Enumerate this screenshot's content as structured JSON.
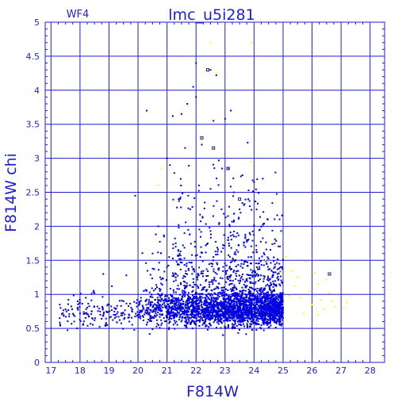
{
  "chart_data": {
    "type": "scatter",
    "title": "lmc_u5i281",
    "panel_label": "WF4",
    "xlabel": "F814W",
    "ylabel": "F814W  chi",
    "xlim": [
      16.8,
      28.5
    ],
    "ylim": [
      0,
      5
    ],
    "x_ticks": [
      17,
      18,
      19,
      20,
      21,
      22,
      23,
      24,
      25,
      26,
      27,
      28
    ],
    "y_ticks": [
      0,
      0.5,
      1,
      1.5,
      2,
      2.5,
      3,
      3.5,
      4,
      4.5,
      5
    ],
    "x_tick_labels": [
      "17",
      "18",
      "19",
      "20",
      "21",
      "22",
      "23",
      "24",
      "25",
      "26",
      "27",
      "28"
    ],
    "y_tick_labels": [
      "0",
      "0.5",
      "1",
      "1.5",
      "2",
      "2.5",
      "3",
      "3.5",
      "4",
      "4.5",
      "5"
    ],
    "grid": true,
    "colors": {
      "frame": "#1f1fcf",
      "blue_points": "#0000e0",
      "yellow_points": "#ffff00",
      "open_points": "#1a1a80"
    },
    "series": [
      {
        "color": "blue",
        "points": [
          [
            17.3,
            0.65
          ],
          [
            17.5,
            0.78
          ],
          [
            17.6,
            0.92
          ],
          [
            17.8,
            0.6
          ],
          [
            17.9,
            0.5
          ],
          [
            18.0,
            0.72
          ],
          [
            18.0,
            0.88
          ],
          [
            18.1,
            0.55
          ],
          [
            18.2,
            0.95
          ],
          [
            18.3,
            0.68
          ],
          [
            18.4,
            0.75
          ],
          [
            18.5,
            0.62
          ],
          [
            18.5,
            1.02
          ],
          [
            18.6,
            0.82
          ],
          [
            18.7,
            0.7
          ],
          [
            18.8,
            1.3
          ],
          [
            18.9,
            0.58
          ],
          [
            19.0,
            0.85
          ],
          [
            19.1,
            1.12
          ],
          [
            19.2,
            0.65
          ],
          [
            19.3,
            0.74
          ],
          [
            19.5,
            0.9
          ],
          [
            19.6,
            1.28
          ],
          [
            19.7,
            0.6
          ],
          [
            19.8,
            0.78
          ],
          [
            19.9,
            2.45
          ],
          [
            20.0,
            0.7
          ],
          [
            20.1,
            0.95
          ],
          [
            20.2,
            1.05
          ],
          [
            20.3,
            3.7
          ],
          [
            20.4,
            0.42
          ],
          [
            20.5,
            1.6
          ],
          [
            20.5,
            0.66
          ],
          [
            20.6,
            0.8
          ],
          [
            20.7,
            2.0
          ],
          [
            20.8,
            1.22
          ],
          [
            20.8,
            0.55
          ],
          [
            20.9,
            1.85
          ],
          [
            21.0,
            1.4
          ],
          [
            21.0,
            3.0
          ],
          [
            21.1,
            0.6
          ],
          [
            21.1,
            2.9
          ],
          [
            21.2,
            3.62
          ],
          [
            21.3,
            1.7
          ],
          [
            21.4,
            2.4
          ],
          [
            21.5,
            3.65
          ],
          [
            21.6,
            1.9
          ],
          [
            21.7,
            3.8
          ],
          [
            21.8,
            2.25
          ],
          [
            21.9,
            4.05
          ],
          [
            22.0,
            4.4
          ],
          [
            22.0,
            3.9
          ],
          [
            22.1,
            2.6
          ],
          [
            22.2,
            3.2
          ],
          [
            22.3,
            2.35
          ],
          [
            22.4,
            1.75
          ],
          [
            22.5,
            4.3
          ],
          [
            22.5,
            2.55
          ],
          [
            22.6,
            3.55
          ],
          [
            22.7,
            4.22
          ],
          [
            22.8,
            2.05
          ],
          [
            22.9,
            2.85
          ],
          [
            23.0,
            3.58
          ],
          [
            23.1,
            2.15
          ],
          [
            23.2,
            3.7
          ],
          [
            23.3,
            2.5
          ],
          [
            23.4,
            1.65
          ],
          [
            23.5,
            2.25
          ],
          [
            23.6,
            2.75
          ],
          [
            23.7,
            1.85
          ],
          [
            23.8,
            2.4
          ],
          [
            23.9,
            1.55
          ],
          [
            24.0,
            2.65
          ],
          [
            24.1,
            1.4
          ],
          [
            24.2,
            1.95
          ],
          [
            24.3,
            2.7
          ],
          [
            24.4,
            1.5
          ],
          [
            24.5,
            1.2
          ],
          [
            24.6,
            1.35
          ],
          [
            24.7,
            1.05
          ]
        ]
      },
      {
        "color": "yellow",
        "points": [
          [
            22.5,
            4.7
          ],
          [
            22.7,
            4.25
          ],
          [
            23.9,
            4.7
          ],
          [
            23.9,
            2.95
          ],
          [
            20.8,
            2.85
          ],
          [
            20.7,
            2.6
          ],
          [
            24.4,
            1.5
          ],
          [
            24.8,
            1.7
          ],
          [
            24.9,
            1.32
          ],
          [
            25.1,
            1.55
          ],
          [
            25.3,
            1.35
          ],
          [
            25.4,
            1.12
          ],
          [
            25.5,
            1.25
          ],
          [
            25.6,
            0.95
          ],
          [
            25.8,
            1.48
          ],
          [
            25.9,
            1.05
          ],
          [
            26.0,
            0.85
          ],
          [
            26.1,
            1.32
          ],
          [
            26.2,
            1.15
          ],
          [
            26.3,
            0.92
          ],
          [
            26.4,
            0.78
          ],
          [
            26.5,
            1.22
          ],
          [
            26.6,
            1.02
          ],
          [
            26.7,
            0.9
          ],
          [
            26.8,
            0.82
          ],
          [
            27.1,
            0.8
          ],
          [
            27.2,
            0.88
          ],
          [
            25.2,
            0.98
          ],
          [
            25.7,
            0.72
          ],
          [
            26.2,
            0.7
          ]
        ]
      },
      {
        "color": "open",
        "points": [
          [
            22.4,
            4.3
          ],
          [
            22.2,
            3.3
          ],
          [
            22.6,
            3.15
          ],
          [
            23.1,
            2.85
          ],
          [
            23.5,
            2.4
          ],
          [
            26.6,
            1.3
          ]
        ]
      }
    ]
  }
}
